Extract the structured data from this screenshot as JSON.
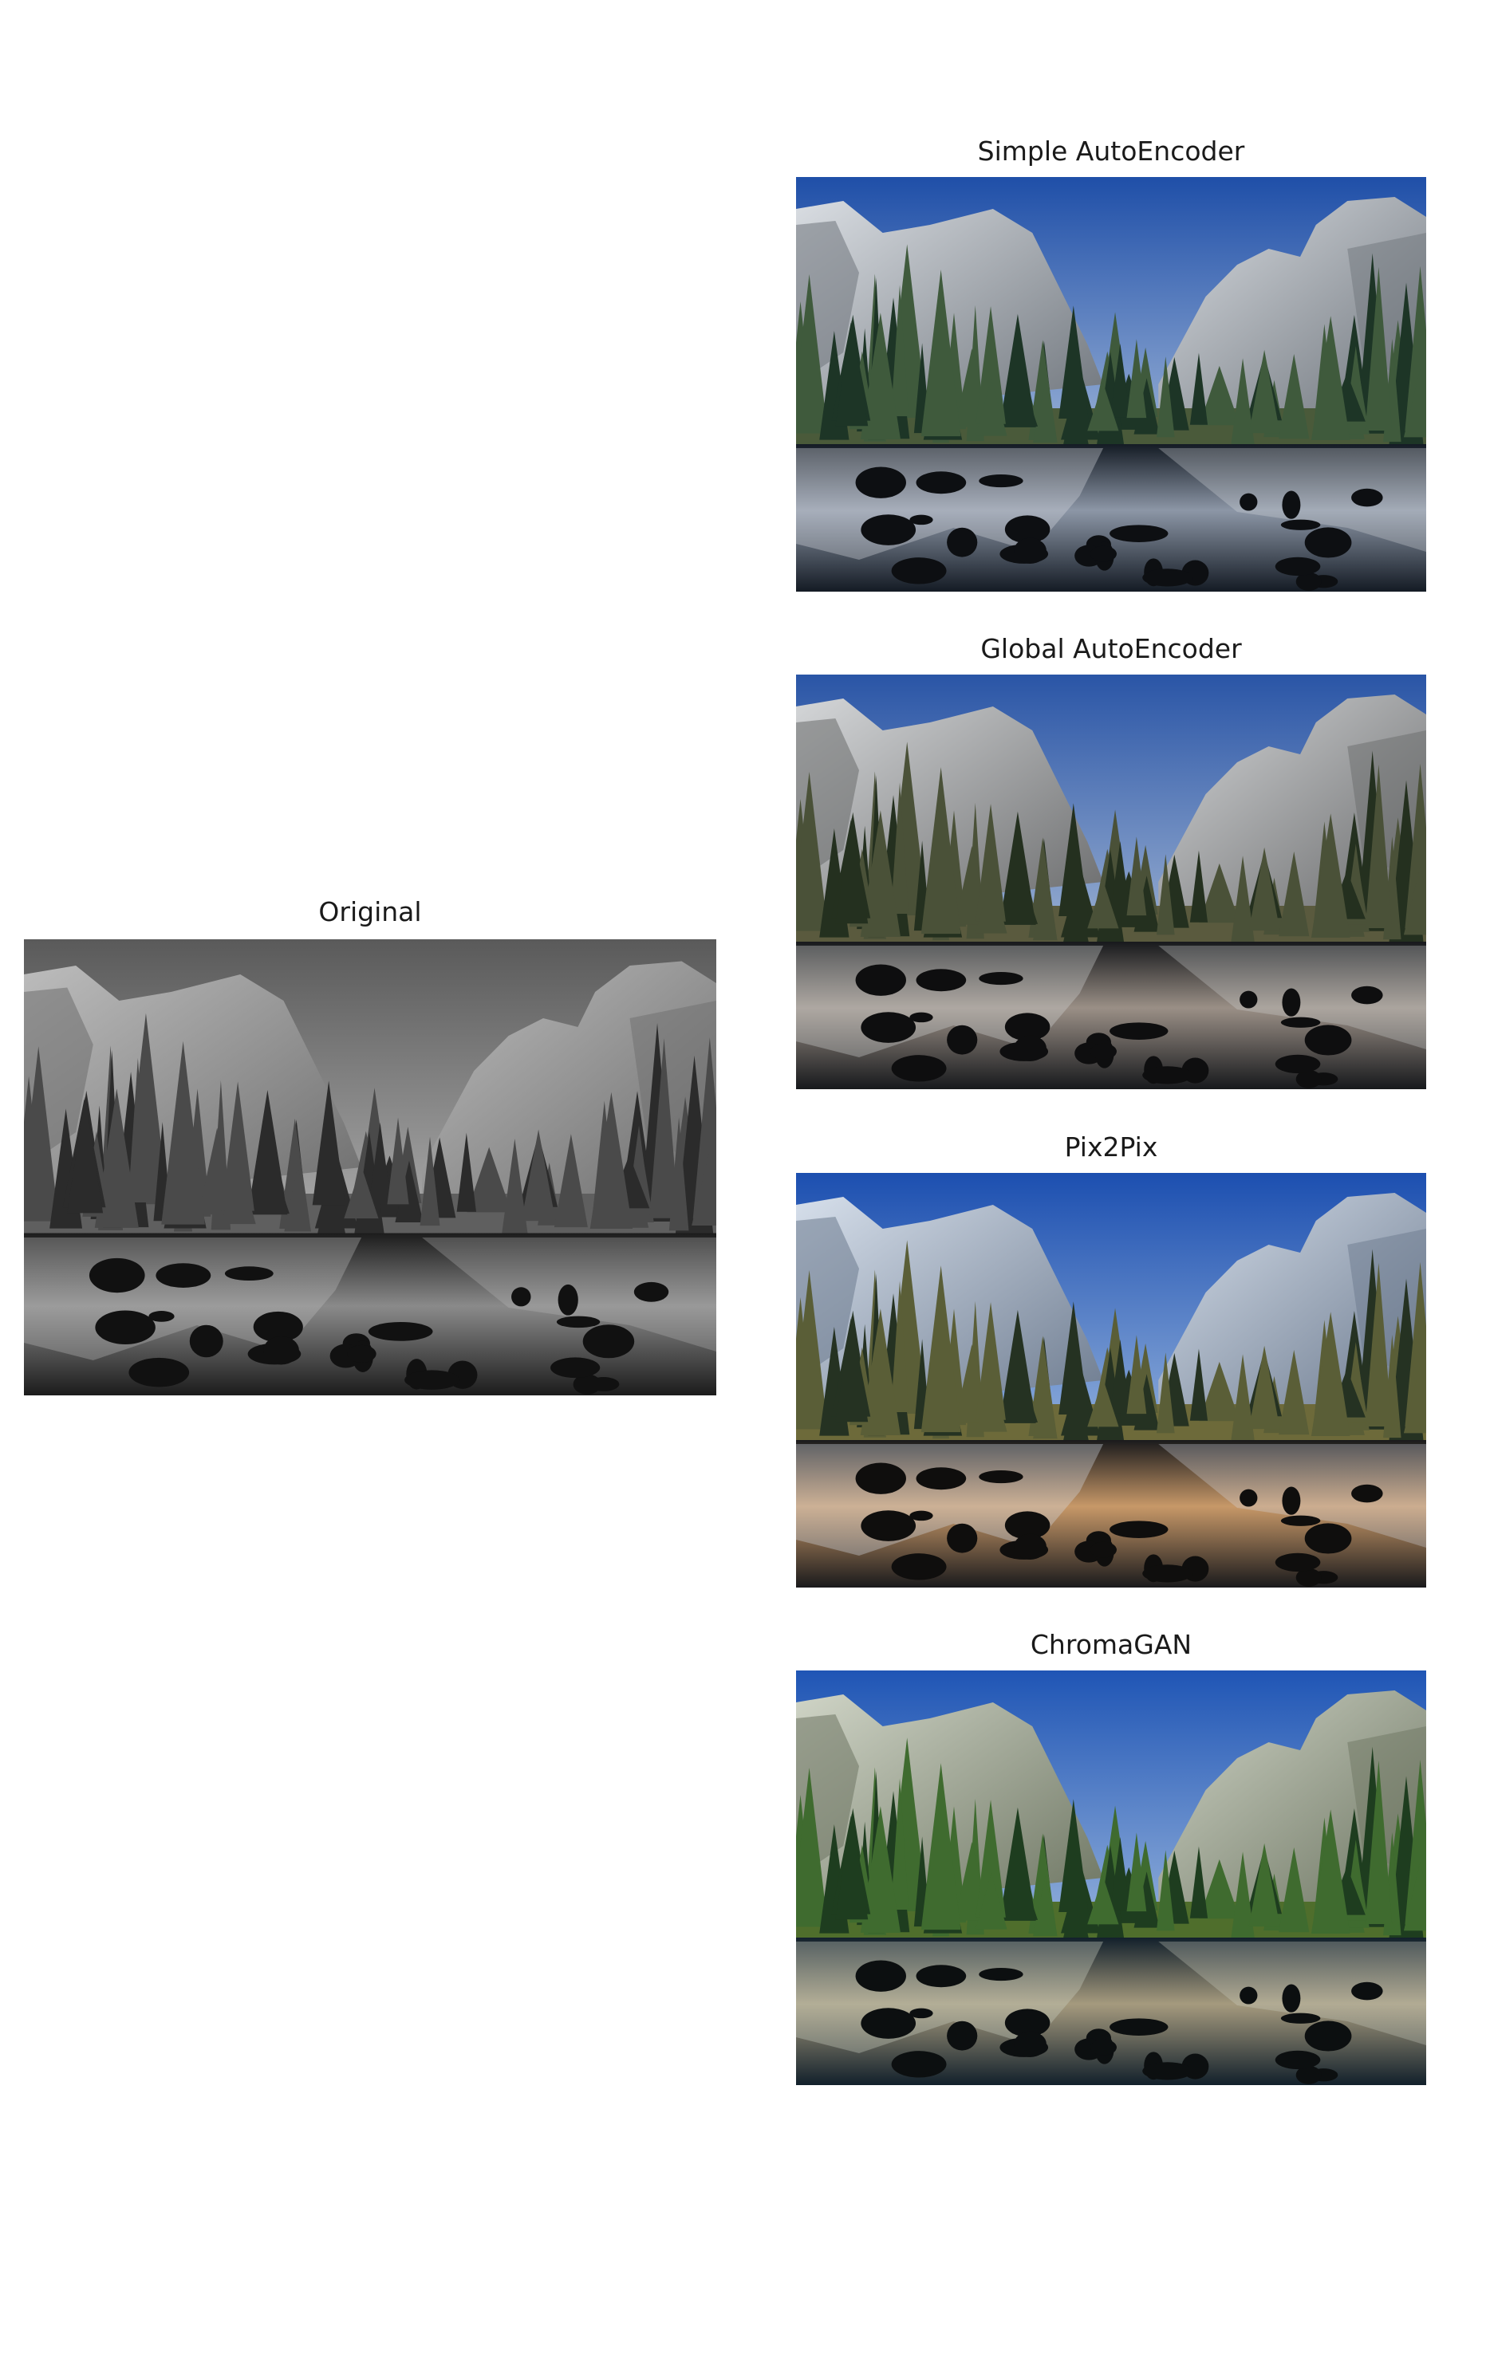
{
  "panels": [
    {
      "id": "original",
      "title": "Original",
      "palette": "gray"
    },
    {
      "id": "simple",
      "title": "Simple AutoEncoder",
      "palette": "simple"
    },
    {
      "id": "global",
      "title": "Global AutoEncoder",
      "palette": "global"
    },
    {
      "id": "pix2pix",
      "title": "Pix2Pix",
      "palette": "pix2pix"
    },
    {
      "id": "chromagan",
      "title": "ChromaGAN",
      "palette": "chromagan"
    }
  ],
  "palettes": {
    "gray": {
      "skyTop": "#5a5a5a",
      "skyBottom": "#d9d9d9",
      "cliff": "#bcbcbc",
      "cliffShade": "#6e6e6e",
      "trees": "#2b2b2b",
      "treesLight": "#4a4a4a",
      "meadow": "#5f5f5f",
      "water": "#1c1c1c",
      "waterGlow": "#8a8a8a",
      "rock": "#111111"
    },
    "simple": {
      "skyTop": "#1f4fa8",
      "skyBottom": "#dbe6ef",
      "cliff": "#d9dde2",
      "cliffShade": "#6f757c",
      "trees": "#1d3526",
      "treesLight": "#3f5a3c",
      "meadow": "#4a5a3a",
      "water": "#141b24",
      "waterGlow": "#8c96a6",
      "rock": "#0d0f12"
    },
    "global": {
      "skyTop": "#2a55a6",
      "skyBottom": "#d8e2ea",
      "cliff": "#d4d6d8",
      "cliffShade": "#6a6b6c",
      "trees": "#24301f",
      "treesLight": "#4a5138",
      "meadow": "#5a5a3e",
      "water": "#17191c",
      "waterGlow": "#9a8f86",
      "rock": "#0e0e0f"
    },
    "pix2pix": {
      "skyTop": "#1c4fb0",
      "skyBottom": "#cfe3f3",
      "cliff": "#d6dfeb",
      "cliffShade": "#6c7a8e",
      "trees": "#253222",
      "treesLight": "#5a5e37",
      "meadow": "#6d6a3a",
      "water": "#1a1a1c",
      "waterGlow": "#c79868",
      "rock": "#0f0e0d"
    },
    "chromagan": {
      "skyTop": "#1f55b5",
      "skyBottom": "#d7e6f1",
      "cliff": "#cfd4c6",
      "cliffShade": "#6d7562",
      "trees": "#1e3d1f",
      "treesLight": "#3f6b2f",
      "meadow": "#4f6e2c",
      "water": "#12202b",
      "waterGlow": "#a59a7e",
      "rock": "#0c0f10"
    }
  }
}
